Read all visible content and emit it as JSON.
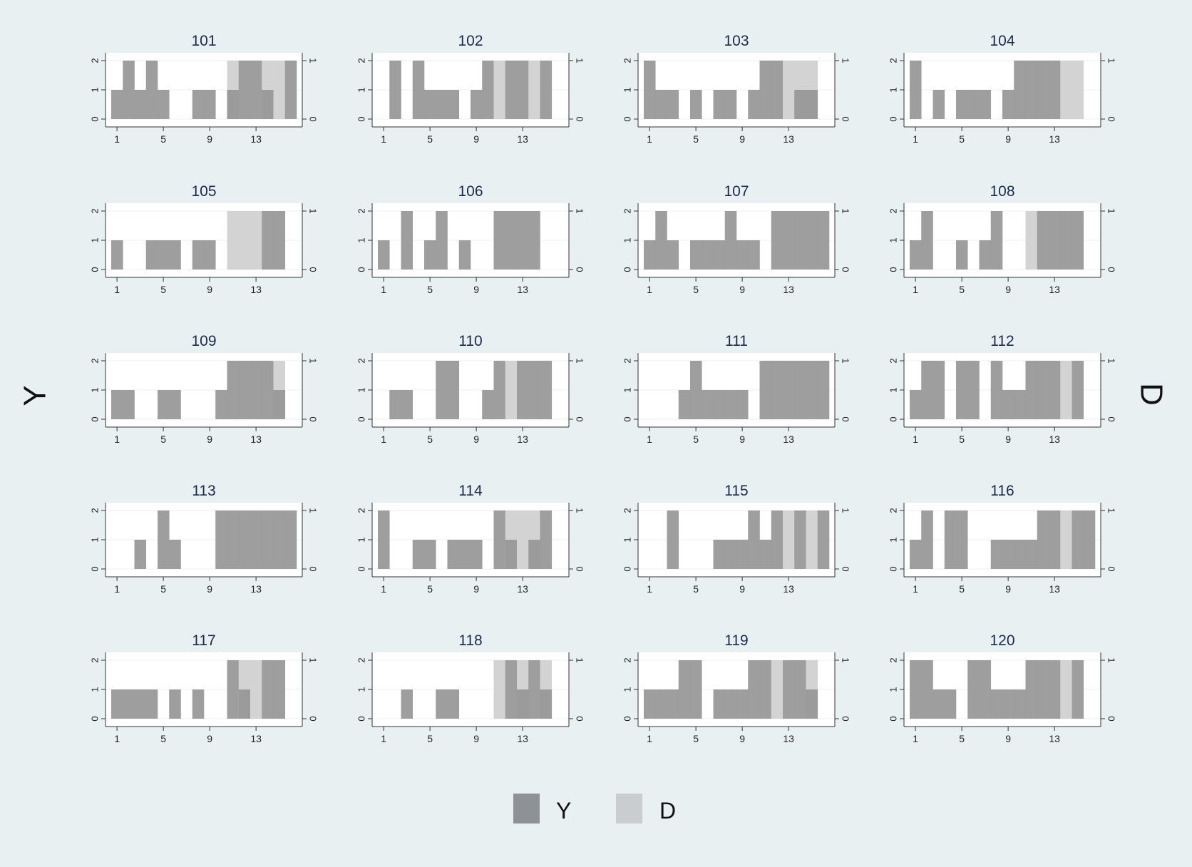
{
  "figure": {
    "left_axis_title": "Y",
    "right_axis_title": "D",
    "legend": [
      {
        "key": "Y",
        "label": "Y",
        "color": "#8e9296"
      },
      {
        "key": "D",
        "label": "D",
        "color": "#c9cdcf"
      }
    ],
    "colors": {
      "background": "#e9f0f2",
      "plot_bg": "#ffffff",
      "y_bar": "#969696",
      "d_bar": "#d3d3d3",
      "title": "#1a2a4f"
    }
  },
  "chart_data": {
    "type": "bar",
    "layout": "small-multiples",
    "panels_per_row": 4,
    "x": [
      1,
      2,
      3,
      4,
      5,
      6,
      7,
      8,
      9,
      10,
      11,
      12,
      13,
      14,
      15,
      16
    ],
    "x_ticks": [
      1,
      5,
      9,
      13
    ],
    "y_left": {
      "label": "Y",
      "ticks": [
        0,
        1,
        2
      ],
      "ylim": [
        0,
        2
      ]
    },
    "y_right": {
      "label": "D",
      "ticks": [
        0,
        1
      ],
      "ylim": [
        0,
        1
      ]
    },
    "panels": [
      {
        "title": "101",
        "Y": [
          1,
          2,
          1,
          2,
          1,
          0,
          0,
          1,
          1,
          0,
          1,
          2,
          2,
          1,
          0,
          2
        ],
        "D": [
          0,
          0,
          0,
          0,
          0,
          0,
          0,
          0,
          0,
          0,
          1,
          0,
          0,
          1,
          1,
          0
        ]
      },
      {
        "title": "102",
        "Y": [
          0,
          2,
          0,
          2,
          1,
          1,
          1,
          0,
          1,
          2,
          0,
          2,
          2,
          0,
          2,
          0
        ],
        "D": [
          0,
          0,
          0,
          0,
          0,
          0,
          0,
          0,
          0,
          0,
          1,
          0,
          0,
          1,
          0,
          0
        ]
      },
      {
        "title": "103",
        "Y": [
          2,
          1,
          1,
          0,
          1,
          0,
          1,
          1,
          0,
          1,
          2,
          2,
          0,
          1,
          1,
          0
        ],
        "D": [
          0,
          0,
          0,
          0,
          0,
          0,
          0,
          0,
          0,
          0,
          0,
          0,
          1,
          1,
          1,
          0
        ]
      },
      {
        "title": "104",
        "Y": [
          2,
          0,
          1,
          0,
          1,
          1,
          1,
          0,
          1,
          2,
          2,
          2,
          2,
          0,
          0,
          0
        ],
        "D": [
          0,
          0,
          0,
          0,
          0,
          0,
          0,
          0,
          0,
          0,
          0,
          0,
          0,
          1,
          1,
          0
        ]
      },
      {
        "title": "105",
        "Y": [
          1,
          0,
          0,
          1,
          1,
          1,
          0,
          1,
          1,
          0,
          0,
          0,
          0,
          2,
          2,
          0
        ],
        "D": [
          0,
          0,
          0,
          0,
          0,
          0,
          0,
          0,
          0,
          0,
          1,
          1,
          1,
          0,
          0,
          0
        ]
      },
      {
        "title": "106",
        "Y": [
          1,
          0,
          2,
          0,
          1,
          2,
          0,
          1,
          0,
          0,
          2,
          2,
          2,
          2,
          0,
          0
        ],
        "D": [
          0,
          0,
          0,
          0,
          0,
          0,
          0,
          0,
          0,
          0,
          0,
          0,
          0,
          0,
          0,
          0
        ]
      },
      {
        "title": "107",
        "Y": [
          1,
          2,
          1,
          0,
          1,
          1,
          1,
          2,
          1,
          1,
          0,
          2,
          2,
          2,
          2,
          2
        ],
        "D": [
          0,
          0,
          0,
          0,
          0,
          0,
          0,
          0,
          0,
          0,
          0,
          0,
          0,
          0,
          0,
          0
        ]
      },
      {
        "title": "108",
        "Y": [
          1,
          2,
          0,
          0,
          1,
          0,
          1,
          2,
          0,
          0,
          0,
          2,
          2,
          2,
          2,
          0
        ],
        "D": [
          0,
          0,
          0,
          0,
          0,
          0,
          0,
          0,
          0,
          0,
          1,
          0,
          0,
          0,
          0,
          0
        ]
      },
      {
        "title": "109",
        "Y": [
          1,
          1,
          0,
          0,
          1,
          1,
          0,
          0,
          0,
          1,
          2,
          2,
          2,
          2,
          1,
          0
        ],
        "D": [
          0,
          0,
          0,
          0,
          0,
          0,
          0,
          0,
          0,
          0,
          0,
          0,
          0,
          0,
          1,
          0
        ]
      },
      {
        "title": "110",
        "Y": [
          0,
          1,
          1,
          0,
          0,
          2,
          2,
          0,
          0,
          1,
          2,
          0,
          2,
          2,
          2,
          0
        ],
        "D": [
          0,
          0,
          0,
          0,
          0,
          0,
          0,
          0,
          0,
          0,
          0,
          1,
          0,
          0,
          0,
          0
        ]
      },
      {
        "title": "111",
        "Y": [
          0,
          0,
          0,
          1,
          2,
          1,
          1,
          1,
          1,
          0,
          2,
          2,
          2,
          2,
          2,
          2
        ],
        "D": [
          0,
          0,
          0,
          0,
          0,
          0,
          0,
          0,
          0,
          0,
          0,
          0,
          0,
          0,
          0,
          0
        ]
      },
      {
        "title": "112",
        "Y": [
          1,
          2,
          2,
          0,
          2,
          2,
          0,
          2,
          1,
          1,
          2,
          2,
          2,
          0,
          2,
          0
        ],
        "D": [
          0,
          0,
          0,
          0,
          0,
          0,
          0,
          0,
          0,
          0,
          0,
          0,
          0,
          1,
          0,
          0
        ]
      },
      {
        "title": "113",
        "Y": [
          0,
          0,
          1,
          0,
          2,
          1,
          0,
          0,
          0,
          2,
          2,
          2,
          2,
          2,
          2,
          2
        ],
        "D": [
          0,
          0,
          0,
          0,
          0,
          0,
          0,
          0,
          0,
          0,
          0,
          0,
          0,
          0,
          0,
          0
        ]
      },
      {
        "title": "114",
        "Y": [
          2,
          0,
          0,
          1,
          1,
          0,
          1,
          1,
          1,
          0,
          2,
          1,
          0,
          1,
          2,
          0
        ],
        "D": [
          0,
          0,
          0,
          0,
          0,
          0,
          0,
          0,
          0,
          0,
          0,
          1,
          1,
          1,
          0,
          0
        ]
      },
      {
        "title": "115",
        "Y": [
          0,
          0,
          2,
          0,
          0,
          0,
          1,
          1,
          1,
          2,
          1,
          2,
          0,
          2,
          0,
          2
        ],
        "D": [
          0,
          0,
          0,
          0,
          0,
          0,
          0,
          0,
          0,
          0,
          0,
          0,
          1,
          0,
          1,
          0
        ]
      },
      {
        "title": "116",
        "Y": [
          1,
          2,
          0,
          2,
          2,
          0,
          0,
          1,
          1,
          1,
          1,
          2,
          2,
          0,
          2,
          2
        ],
        "D": [
          0,
          0,
          0,
          0,
          0,
          0,
          0,
          0,
          0,
          0,
          0,
          0,
          0,
          1,
          0,
          0
        ]
      },
      {
        "title": "117",
        "Y": [
          1,
          1,
          1,
          1,
          0,
          1,
          0,
          1,
          0,
          0,
          2,
          1,
          0,
          2,
          2,
          0
        ],
        "D": [
          0,
          0,
          0,
          0,
          0,
          0,
          0,
          0,
          0,
          0,
          0,
          1,
          1,
          0,
          0,
          0
        ]
      },
      {
        "title": "118",
        "Y": [
          0,
          0,
          1,
          0,
          0,
          1,
          1,
          0,
          0,
          0,
          0,
          2,
          1,
          2,
          1,
          0
        ],
        "D": [
          0,
          0,
          0,
          0,
          0,
          0,
          0,
          0,
          0,
          0,
          1,
          0,
          1,
          0,
          1,
          0
        ]
      },
      {
        "title": "119",
        "Y": [
          1,
          1,
          1,
          2,
          2,
          0,
          1,
          1,
          1,
          2,
          2,
          0,
          2,
          2,
          1,
          0
        ],
        "D": [
          0,
          0,
          0,
          0,
          0,
          0,
          0,
          0,
          0,
          0,
          0,
          1,
          0,
          0,
          1,
          0
        ]
      },
      {
        "title": "120",
        "Y": [
          2,
          2,
          1,
          1,
          0,
          2,
          2,
          1,
          1,
          1,
          2,
          2,
          2,
          0,
          2,
          0
        ],
        "D": [
          0,
          0,
          0,
          0,
          0,
          0,
          0,
          0,
          0,
          0,
          0,
          0,
          0,
          1,
          0,
          0
        ]
      }
    ]
  }
}
